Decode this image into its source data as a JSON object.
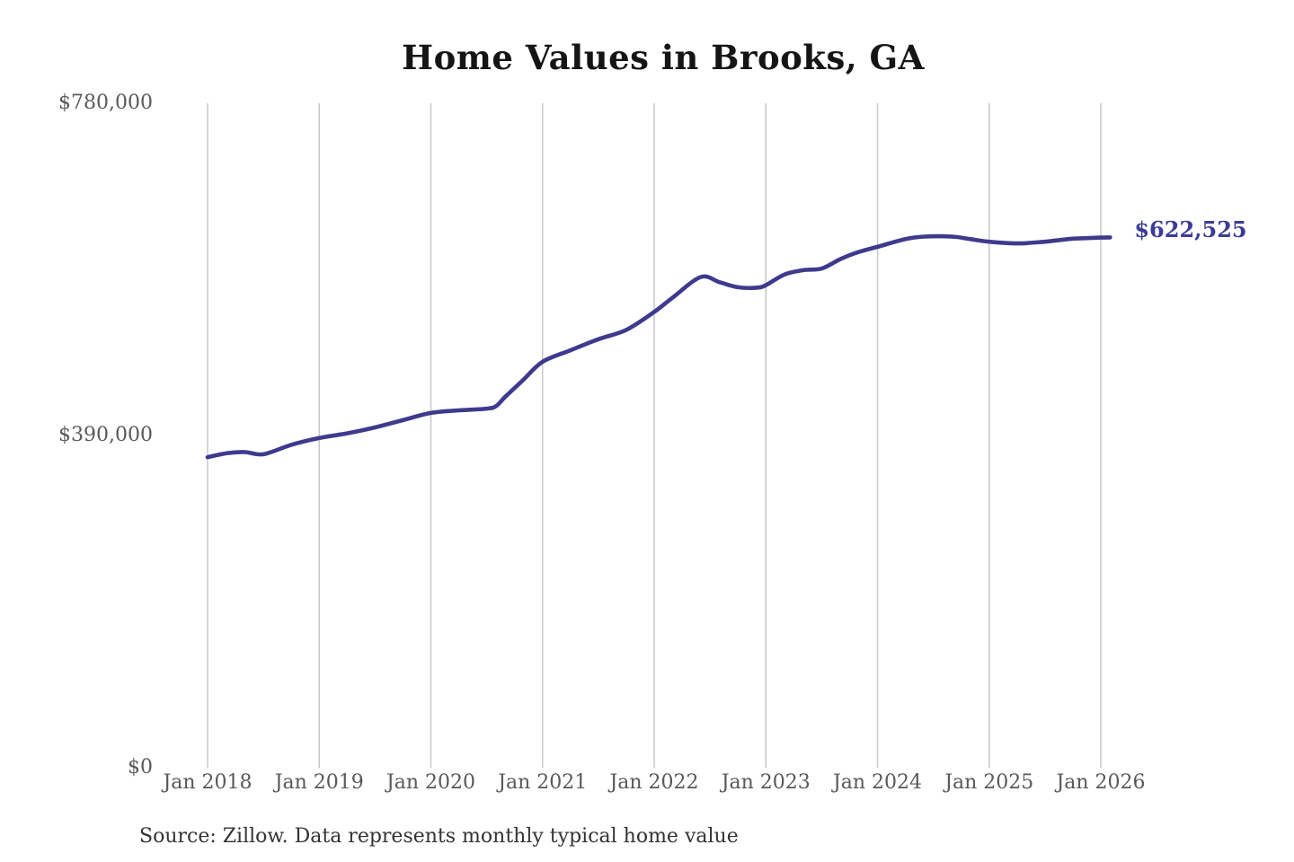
{
  "source_note": "Source: Zillow. Data represents monthly typical home value",
  "colors": {
    "line": "#3e3a8d",
    "end_label": "#3c3c96",
    "grid": "#c8c8c8",
    "tick_text": "#595959",
    "title_text": "#151515",
    "source_text": "#333333"
  },
  "chart_data": {
    "type": "line",
    "title": "Home Values in Brooks, GA",
    "xlabel": "",
    "ylabel": "",
    "ylim": [
      0,
      780000
    ],
    "xlim_months": [
      0,
      97
    ],
    "grid": "vertical-only",
    "legend_position": "none",
    "y_ticks": [
      {
        "value": 0,
        "label": "$0"
      },
      {
        "value": 390000,
        "label": "$390,000"
      },
      {
        "value": 780000,
        "label": "$780,000"
      }
    ],
    "x_ticks": [
      {
        "m": 0,
        "label": "Jan 2018"
      },
      {
        "m": 12,
        "label": "Jan 2019"
      },
      {
        "m": 24,
        "label": "Jan 2020"
      },
      {
        "m": 36,
        "label": "Jan 2021"
      },
      {
        "m": 48,
        "label": "Jan 2022"
      },
      {
        "m": 60,
        "label": "Jan 2023"
      },
      {
        "m": 72,
        "label": "Jan 2024"
      },
      {
        "m": 84,
        "label": "Jan 2025"
      },
      {
        "m": 96,
        "label": "Jan 2026"
      }
    ],
    "series": [
      {
        "name": "Monthly typical home value (USD)",
        "x_unit": "months since Jan 2018",
        "points": [
          [
            0,
            364500
          ],
          [
            2,
            369000
          ],
          [
            4,
            370500
          ],
          [
            6,
            368000
          ],
          [
            9,
            379000
          ],
          [
            12,
            387000
          ],
          [
            15,
            392500
          ],
          [
            18,
            399500
          ],
          [
            21,
            408000
          ],
          [
            24,
            416500
          ],
          [
            27,
            419500
          ],
          [
            30,
            421500
          ],
          [
            31,
            424500
          ],
          [
            32,
            435500
          ],
          [
            34,
            456000
          ],
          [
            36,
            476500
          ],
          [
            39,
            490000
          ],
          [
            42,
            503000
          ],
          [
            45,
            514000
          ],
          [
            48,
            535000
          ],
          [
            50,
            552000
          ],
          [
            53,
            576000
          ],
          [
            55,
            570000
          ],
          [
            57,
            564000
          ],
          [
            59,
            563500
          ],
          [
            60,
            566500
          ],
          [
            62,
            579000
          ],
          [
            64,
            584000
          ],
          [
            66,
            586000
          ],
          [
            68,
            597000
          ],
          [
            70,
            605500
          ],
          [
            72,
            611500
          ],
          [
            75,
            620500
          ],
          [
            77,
            623500
          ],
          [
            80,
            623500
          ],
          [
            82,
            620500
          ],
          [
            84,
            617500
          ],
          [
            87,
            615500
          ],
          [
            90,
            617500
          ],
          [
            93,
            621000
          ],
          [
            96,
            622300
          ],
          [
            97,
            622525
          ]
        ]
      }
    ],
    "end_label": {
      "text": "$622,525",
      "value": 622525
    }
  }
}
